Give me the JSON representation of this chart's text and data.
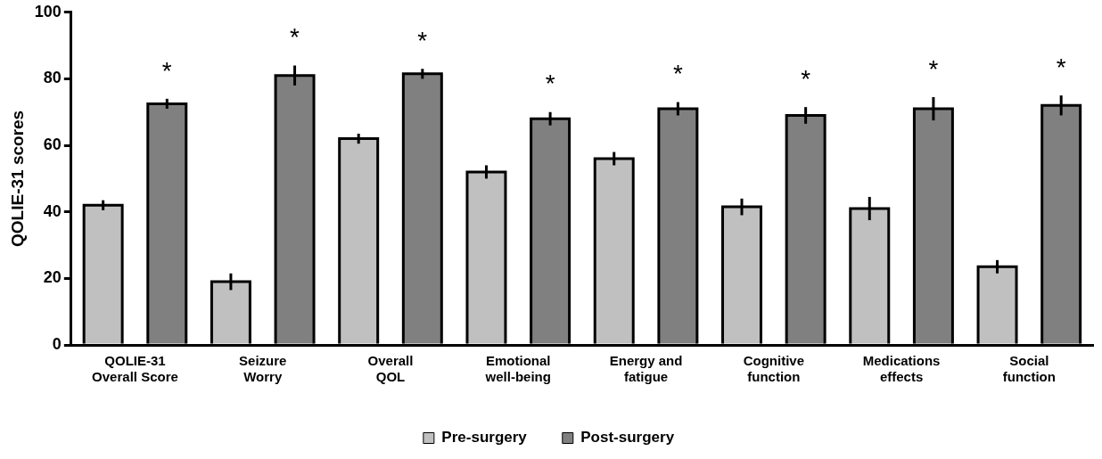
{
  "chart_data": {
    "type": "bar",
    "ylabel": "QOLIE-31 scores",
    "categories": [
      "QOLIE-31 Overall Score",
      "Seizure Worry",
      "Overall QOL",
      "Emotional well-being",
      "Energy and fatigue",
      "Cognitive function",
      "Medications effects",
      "Social function"
    ],
    "series": [
      {
        "name": "Pre-surgery",
        "color": "#c0c0c0",
        "values": [
          42,
          19,
          62,
          52,
          56,
          41.5,
          41,
          23.5
        ],
        "errors": [
          1.5,
          2.5,
          1.5,
          2,
          2,
          2.5,
          3.5,
          2
        ]
      },
      {
        "name": "Post-surgery",
        "color": "#808080",
        "values": [
          72.5,
          81,
          81.5,
          68,
          71,
          69,
          71,
          72
        ],
        "errors": [
          1.5,
          3,
          1.5,
          2,
          2,
          2.5,
          3.5,
          3
        ]
      }
    ],
    "ylim": [
      0,
      100
    ],
    "yticks": [
      0,
      20,
      40,
      60,
      80,
      100
    ],
    "grid": false,
    "legend": "bottom",
    "annotations": [
      "*",
      "*",
      "*",
      "*",
      "*",
      "*",
      "*",
      "*"
    ]
  }
}
